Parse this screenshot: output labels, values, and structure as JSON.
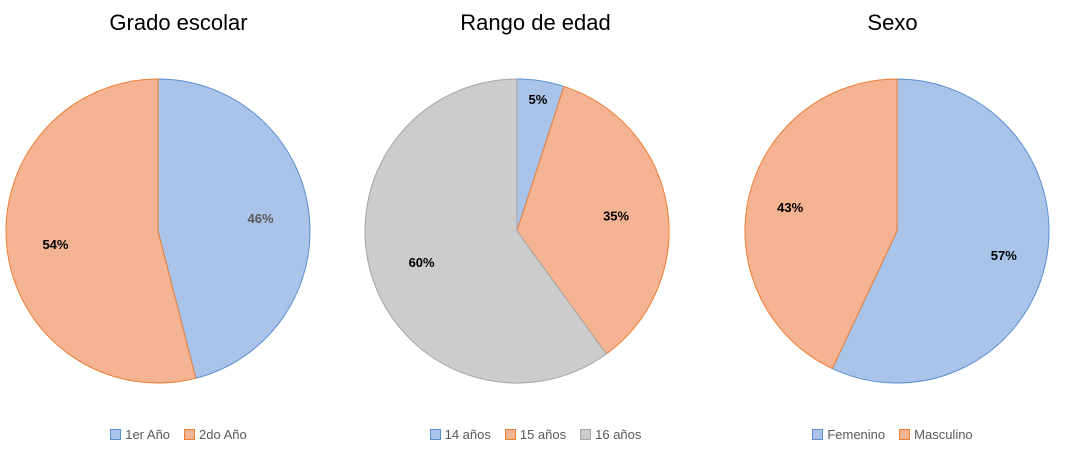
{
  "chart_data": [
    {
      "type": "pie",
      "title": "Grado escolar",
      "categories": [
        "1er Año",
        "2do Año"
      ],
      "values": [
        46,
        54
      ],
      "labels": [
        "46%",
        "54%"
      ],
      "colors": [
        "#a9c4e8",
        "#f4b494"
      ],
      "label_colors": [
        "#595959",
        "#000000"
      ],
      "legend": "bottom"
    },
    {
      "type": "pie",
      "title": "Rango de edad",
      "categories": [
        "14 años",
        "15 años",
        "16 años"
      ],
      "values": [
        5,
        35,
        60
      ],
      "labels": [
        "5%",
        "35%",
        "60%"
      ],
      "colors": [
        "#a9c4e8",
        "#f4b494",
        "#cccccc"
      ],
      "label_colors": [
        "#000000",
        "#000000",
        "#000000"
      ],
      "legend": "bottom"
    },
    {
      "type": "pie",
      "title": "Sexo",
      "categories": [
        "Femenino",
        "Masculino"
      ],
      "values": [
        57,
        43
      ],
      "labels": [
        "57%",
        "43%"
      ],
      "colors": [
        "#a9c4e8",
        "#f4b494"
      ],
      "label_colors": [
        "#000000",
        "#000000"
      ],
      "legend": "bottom"
    }
  ]
}
